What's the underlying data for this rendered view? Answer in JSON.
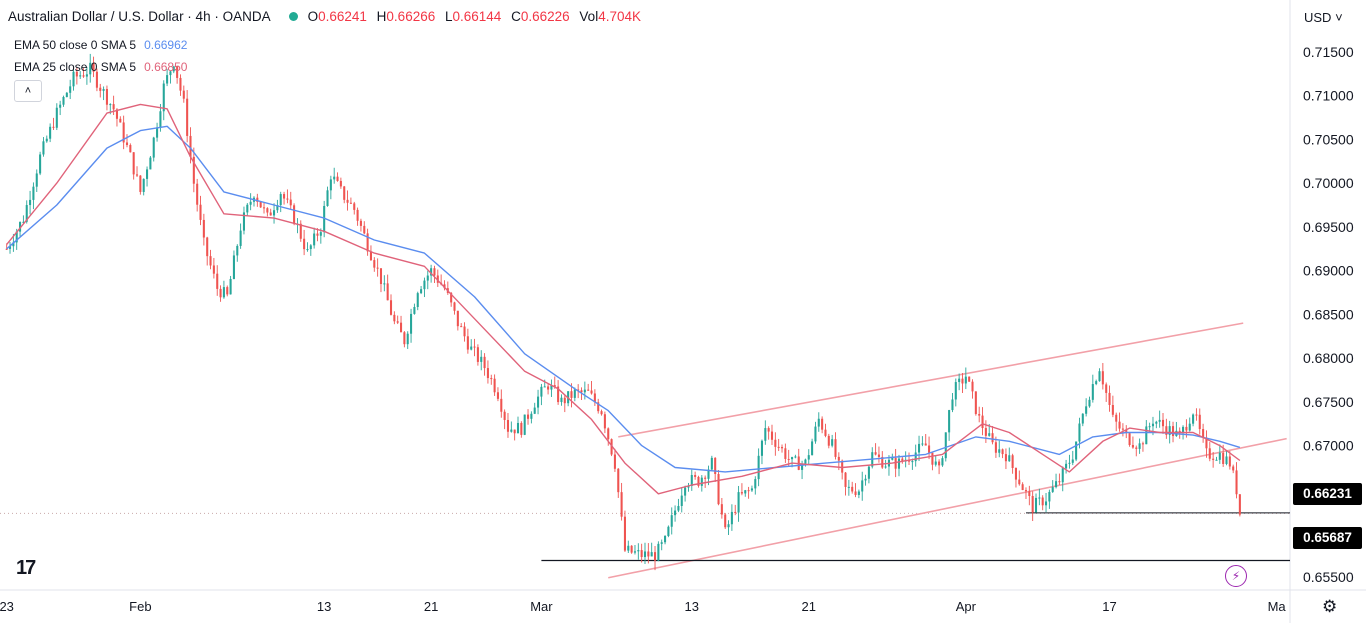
{
  "header": {
    "symbol_title": "Australian Dollar / U.S. Dollar · 4h · OANDA",
    "ohlc": [
      {
        "key": "O",
        "value": "0.66241"
      },
      {
        "key": "H",
        "value": "0.66266"
      },
      {
        "key": "L",
        "value": "0.66144"
      },
      {
        "key": "C",
        "value": "0.66226"
      },
      {
        "key": "Vol",
        "value": "4.704K"
      }
    ],
    "status_color": "#22ab94"
  },
  "indicators": [
    {
      "label": "EMA 50 close 0 SMA 5",
      "value": "0.66962",
      "color": "#5b8def"
    },
    {
      "label": "EMA 25 close 0 SMA 5",
      "value": "0.66850",
      "color": "#e0637a"
    }
  ],
  "toolbar": {
    "collapse_icon": "chevron-up-icon",
    "currency_label": "USD"
  },
  "price_tags": {
    "last_price": "0.66231",
    "support_level": "0.65687"
  },
  "chart_data": {
    "type": "candlestick",
    "ylim": [
      0.6535,
      0.7175
    ],
    "y_ticks": [
      "0.71500",
      "0.71000",
      "0.70500",
      "0.70000",
      "0.69500",
      "0.69000",
      "0.68500",
      "0.68000",
      "0.67500",
      "0.67000",
      "0.66500",
      "0.66000",
      "0.65500"
    ],
    "x_ticks": [
      "23",
      "Feb",
      "13",
      "21",
      "Mar",
      "13",
      "21",
      "Apr",
      "17",
      "Ma"
    ],
    "x_tick_index": [
      0,
      40,
      95,
      127,
      160,
      205,
      240,
      287,
      330,
      380
    ],
    "x_range": [
      -2,
      384
    ],
    "series": [
      {
        "name": "EMA 50 close 0 SMA 5",
        "color": "#5b8def",
        "points": [
          [
            0,
            0.6925
          ],
          [
            15,
            0.6975
          ],
          [
            30,
            0.704
          ],
          [
            40,
            0.706
          ],
          [
            48,
            0.7065
          ],
          [
            55,
            0.704
          ],
          [
            65,
            0.699
          ],
          [
            80,
            0.6975
          ],
          [
            95,
            0.696
          ],
          [
            110,
            0.6935
          ],
          [
            125,
            0.692
          ],
          [
            140,
            0.687
          ],
          [
            155,
            0.6805
          ],
          [
            170,
            0.6765
          ],
          [
            180,
            0.674
          ],
          [
            190,
            0.67
          ],
          [
            200,
            0.6675
          ],
          [
            215,
            0.667
          ],
          [
            230,
            0.6675
          ],
          [
            245,
            0.668
          ],
          [
            260,
            0.6685
          ],
          [
            275,
            0.669
          ],
          [
            290,
            0.671
          ],
          [
            300,
            0.6705
          ],
          [
            315,
            0.669
          ],
          [
            325,
            0.671
          ],
          [
            335,
            0.6715
          ],
          [
            345,
            0.6715
          ],
          [
            355,
            0.6712
          ],
          [
            363,
            0.6705
          ],
          [
            369,
            0.6698
          ]
        ]
      },
      {
        "name": "EMA 25 close 0 SMA 5",
        "color": "#e0637a",
        "points": [
          [
            0,
            0.693
          ],
          [
            15,
            0.7
          ],
          [
            30,
            0.708
          ],
          [
            40,
            0.709
          ],
          [
            48,
            0.7085
          ],
          [
            55,
            0.703
          ],
          [
            65,
            0.6965
          ],
          [
            80,
            0.696
          ],
          [
            95,
            0.6945
          ],
          [
            110,
            0.692
          ],
          [
            125,
            0.6905
          ],
          [
            140,
            0.6845
          ],
          [
            155,
            0.6785
          ],
          [
            165,
            0.6765
          ],
          [
            175,
            0.673
          ],
          [
            185,
            0.668
          ],
          [
            195,
            0.6645
          ],
          [
            205,
            0.6655
          ],
          [
            220,
            0.6665
          ],
          [
            235,
            0.668
          ],
          [
            250,
            0.6675
          ],
          [
            265,
            0.668
          ],
          [
            280,
            0.669
          ],
          [
            292,
            0.6725
          ],
          [
            300,
            0.6715
          ],
          [
            310,
            0.669
          ],
          [
            318,
            0.667
          ],
          [
            328,
            0.6705
          ],
          [
            336,
            0.672
          ],
          [
            345,
            0.6715
          ],
          [
            355,
            0.6715
          ],
          [
            363,
            0.67
          ],
          [
            369,
            0.6683
          ]
        ]
      }
    ],
    "price_path": [
      [
        0,
        0.6925
      ],
      [
        5,
        0.696
      ],
      [
        10,
        0.703
      ],
      [
        15,
        0.708
      ],
      [
        20,
        0.712
      ],
      [
        25,
        0.713
      ],
      [
        28,
        0.711
      ],
      [
        32,
        0.7085
      ],
      [
        37,
        0.703
      ],
      [
        40,
        0.699
      ],
      [
        44,
        0.705
      ],
      [
        47,
        0.711
      ],
      [
        50,
        0.714
      ],
      [
        53,
        0.709
      ],
      [
        56,
        0.7
      ],
      [
        59,
        0.693
      ],
      [
        63,
        0.688
      ],
      [
        66,
        0.687
      ],
      [
        70,
        0.695
      ],
      [
        74,
        0.699
      ],
      [
        78,
        0.696
      ],
      [
        82,
        0.699
      ],
      [
        86,
        0.696
      ],
      [
        90,
        0.692
      ],
      [
        94,
        0.695
      ],
      [
        97,
        0.701
      ],
      [
        100,
        0.699
      ],
      [
        104,
        0.697
      ],
      [
        108,
        0.693
      ],
      [
        112,
        0.689
      ],
      [
        116,
        0.684
      ],
      [
        119,
        0.682
      ],
      [
        123,
        0.688
      ],
      [
        127,
        0.69
      ],
      [
        131,
        0.688
      ],
      [
        135,
        0.684
      ],
      [
        139,
        0.681
      ],
      [
        143,
        0.679
      ],
      [
        147,
        0.676
      ],
      [
        150,
        0.672
      ],
      [
        154,
        0.672
      ],
      [
        158,
        0.675
      ],
      [
        162,
        0.677
      ],
      [
        166,
        0.675
      ],
      [
        170,
        0.676
      ],
      [
        174,
        0.676
      ],
      [
        178,
        0.674
      ],
      [
        182,
        0.668
      ],
      [
        185,
        0.658
      ],
      [
        190,
        0.6575
      ],
      [
        194,
        0.6575
      ],
      [
        197,
        0.659
      ],
      [
        199,
        0.6615
      ],
      [
        203,
        0.666
      ],
      [
        207,
        0.666
      ],
      [
        211,
        0.668
      ],
      [
        215,
        0.66
      ],
      [
        219,
        0.664
      ],
      [
        223,
        0.665
      ],
      [
        227,
        0.672
      ],
      [
        231,
        0.67
      ],
      [
        235,
        0.668
      ],
      [
        239,
        0.668
      ],
      [
        243,
        0.673
      ],
      [
        247,
        0.67
      ],
      [
        251,
        0.665
      ],
      [
        255,
        0.665
      ],
      [
        259,
        0.669
      ],
      [
        263,
        0.668
      ],
      [
        267,
        0.668
      ],
      [
        271,
        0.669
      ],
      [
        275,
        0.67
      ],
      [
        279,
        0.667
      ],
      [
        283,
        0.676
      ],
      [
        287,
        0.678
      ],
      [
        291,
        0.673
      ],
      [
        295,
        0.67
      ],
      [
        299,
        0.669
      ],
      [
        303,
        0.666
      ],
      [
        307,
        0.663
      ],
      [
        311,
        0.664
      ],
      [
        315,
        0.666
      ],
      [
        319,
        0.669
      ],
      [
        323,
        0.675
      ],
      [
        327,
        0.679
      ],
      [
        331,
        0.673
      ],
      [
        335,
        0.671
      ],
      [
        339,
        0.67
      ],
      [
        343,
        0.673
      ],
      [
        347,
        0.672
      ],
      [
        351,
        0.671
      ],
      [
        355,
        0.674
      ],
      [
        359,
        0.669
      ],
      [
        363,
        0.669
      ],
      [
        366,
        0.668
      ],
      [
        368,
        0.665
      ],
      [
        369,
        0.6623
      ]
    ],
    "annotations": {
      "channel_upper": [
        [
          183,
          0.671
        ],
        [
          370,
          0.684
        ]
      ],
      "channel_lower": [
        [
          180,
          0.6549
        ],
        [
          383,
          0.6708
        ]
      ],
      "support_line": {
        "value": 0.65687,
        "from": 160,
        "to": 384
      },
      "horizontal_level": {
        "value": 0.66231,
        "from": 305,
        "to": 384
      },
      "last_price_dotted": 0.66226
    }
  }
}
